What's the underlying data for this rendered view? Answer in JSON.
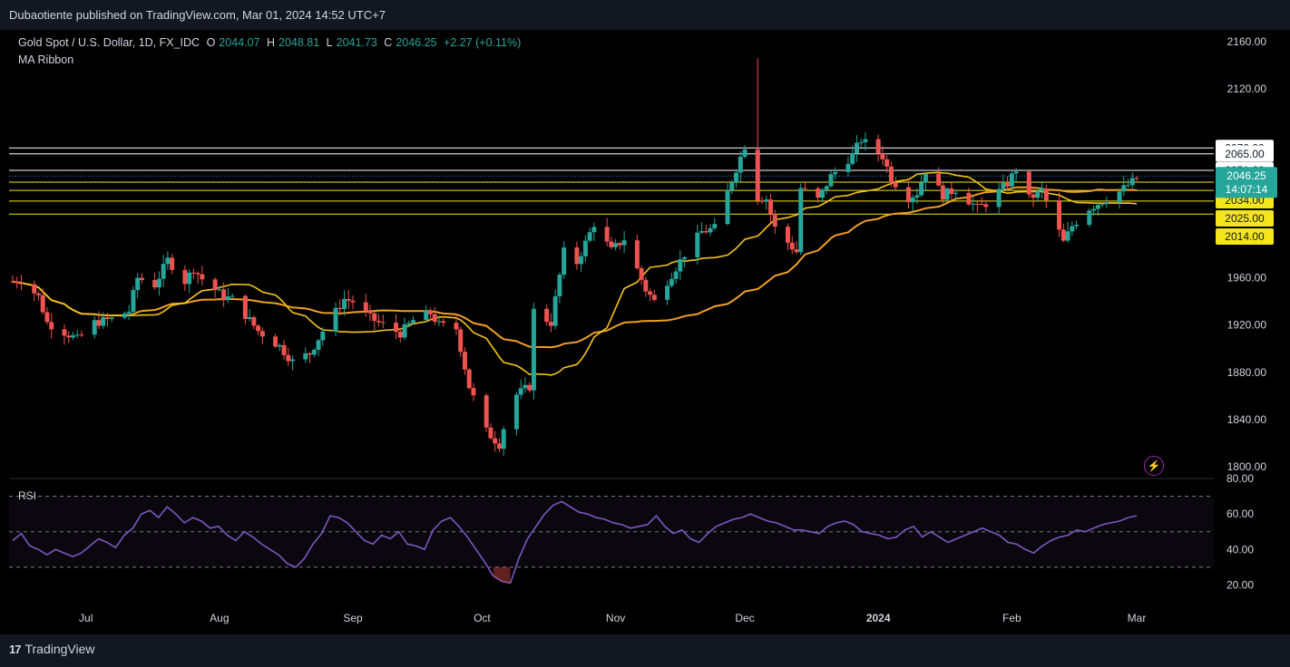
{
  "header": {
    "publisher": "Dubaotiente published on TradingView.com, Mar 01, 2024 14:52 UTC+7"
  },
  "legend": {
    "symbol": "Gold Spot / U.S. Dollar, 1D, FX_IDC",
    "open_key": "O",
    "open": "2044.07",
    "high_key": "H",
    "high": "2048.81",
    "low_key": "L",
    "low": "2041.73",
    "close_key": "C",
    "close": "2046.25",
    "change": "+2.27 (+0.11%)",
    "indicator": "MA Ribbon"
  },
  "rsi_label": "RSI",
  "footer": {
    "brand": "TradingView"
  },
  "colors": {
    "up": "#26a69a",
    "down": "#ef5350",
    "ma_fast": "#f5c518",
    "ma_slow": "#f0a020",
    "rsi": "#7e57c2",
    "level_white": "#ffffff",
    "level_yellow": "#f5e61c"
  },
  "chart_data": [
    {
      "type": "candlestick",
      "title": "Gold Spot / U.S. Dollar, 1D, FX_IDC",
      "ylim": [
        1790,
        2170
      ],
      "y_ticks": [
        1800,
        1840,
        1880,
        1920,
        1960,
        2120,
        2160
      ],
      "x_ticks": [
        "Jul",
        "Aug",
        "Sep",
        "Oct",
        "Nov",
        "Dec",
        "2024",
        "Feb",
        "Mar"
      ],
      "current_price": "2046.25",
      "countdown": "14:07:14",
      "levels_white": [
        "2070.00",
        "2065.00",
        "2051.00"
      ],
      "levels_yellow": [
        "2041.00",
        "2034.00",
        "2025.00",
        "2014.00"
      ],
      "close_path": [
        [
          "Jun 14",
          1957
        ],
        [
          "Jun 16",
          1958
        ],
        [
          "Jun 20",
          1944
        ],
        [
          "Jun 22",
          1922
        ],
        [
          "Jun 27",
          1912
        ],
        [
          "Jun 29",
          1908
        ],
        [
          "Jul 3",
          1922
        ],
        [
          "Jul 7",
          1925
        ],
        [
          "Jul 11",
          1932
        ],
        [
          "Jul 13",
          1960
        ],
        [
          "Jul 17",
          1954
        ],
        [
          "Jul 20",
          1975
        ],
        [
          "Jul 24",
          1957
        ],
        [
          "Jul 26",
          1968
        ],
        [
          "Jul 28",
          1959
        ],
        [
          "Aug 2",
          1944
        ],
        [
          "Aug 4",
          1942
        ],
        [
          "Aug 10",
          1915
        ],
        [
          "Aug 15",
          1902
        ],
        [
          "Aug 18",
          1889
        ],
        [
          "Aug 22",
          1896
        ],
        [
          "Aug 25",
          1915
        ],
        [
          "Aug 30",
          1942
        ],
        [
          "Sep 1",
          1940
        ],
        [
          "Sep 5",
          1926
        ],
        [
          "Sep 8",
          1920
        ],
        [
          "Sep 12",
          1913
        ],
        [
          "Sep 15",
          1924
        ],
        [
          "Sep 19",
          1930
        ],
        [
          "Sep 21",
          1920
        ],
        [
          "Sep 25",
          1917
        ],
        [
          "Sep 28",
          1868
        ],
        [
          "Oct 2",
          1830
        ],
        [
          "Oct 5",
          1819
        ],
        [
          "Oct 6",
          1833
        ],
        [
          "Oct 9",
          1861
        ],
        [
          "Oct 12",
          1868
        ],
        [
          "Oct 13",
          1932
        ],
        [
          "Oct 17",
          1922
        ],
        [
          "Oct 20",
          1982
        ],
        [
          "Oct 23",
          1973
        ],
        [
          "Oct 27",
          2006
        ],
        [
          "Oct 31",
          1983
        ],
        [
          "Nov 3",
          1993
        ],
        [
          "Nov 8",
          1950
        ],
        [
          "Nov 10",
          1940
        ],
        [
          "Nov 14",
          1963
        ],
        [
          "Nov 17",
          1980
        ],
        [
          "Nov 21",
          1999
        ],
        [
          "Nov 24",
          2002
        ],
        [
          "Nov 28",
          2043
        ],
        [
          "Dec 1",
          2072
        ],
        [
          "Dec 4",
          2028
        ],
        [
          "Dec 6",
          2027
        ],
        [
          "Dec 8",
          2002
        ],
        [
          "Dec 13",
          1982
        ],
        [
          "Dec 14",
          2036
        ],
        [
          "Dec 18",
          2026
        ],
        [
          "Dec 21",
          2046
        ],
        [
          "Dec 26",
          2064
        ],
        [
          "Dec 28",
          2077
        ],
        [
          "Jan 2",
          2063
        ],
        [
          "Jan 4",
          2044
        ],
        [
          "Jan 8",
          2028
        ],
        [
          "Jan 10",
          2032
        ],
        [
          "Jan 12",
          2051
        ],
        [
          "Jan 16",
          2030
        ],
        [
          "Jan 19",
          2035
        ],
        [
          "Jan 24",
          2019
        ],
        [
          "Jan 26",
          2023
        ],
        [
          "Jan 31",
          2040
        ],
        [
          "Feb 2",
          2052
        ],
        [
          "Feb 5",
          2027
        ],
        [
          "Feb 8",
          2034
        ],
        [
          "Feb 13",
          1990
        ],
        [
          "Feb 15",
          2004
        ],
        [
          "Feb 19",
          2019
        ],
        [
          "Feb 22",
          2025
        ],
        [
          "Feb 26",
          2033
        ],
        [
          "Feb 29",
          2044
        ],
        [
          "Mar 1",
          2046
        ]
      ]
    },
    {
      "type": "line",
      "title": "RSI",
      "ylim": [
        10,
        80
      ],
      "y_ticks": [
        20,
        40,
        60,
        80
      ],
      "reference_lines": [
        70,
        50,
        30
      ],
      "values": [
        45,
        49,
        42,
        40,
        37,
        40,
        38,
        36,
        38,
        42,
        46,
        44,
        41,
        48,
        52,
        60,
        62,
        58,
        64,
        60,
        55,
        58,
        56,
        52,
        53,
        48,
        45,
        50,
        47,
        43,
        40,
        37,
        32,
        30,
        35,
        43,
        49,
        59,
        58,
        55,
        50,
        45,
        43,
        48,
        46,
        50,
        43,
        42,
        40,
        51,
        56,
        58,
        53,
        47,
        40,
        33,
        25,
        22,
        21,
        35,
        46,
        53,
        60,
        65,
        67,
        64,
        61,
        60,
        58,
        57,
        55,
        54,
        52,
        53,
        54,
        59,
        53,
        49,
        51,
        46,
        44,
        49,
        53,
        55,
        57,
        58,
        60,
        58,
        56,
        55,
        53,
        51,
        51,
        50,
        49,
        53,
        55,
        56,
        54,
        50,
        49,
        48,
        46,
        47,
        51,
        53,
        47,
        50,
        47,
        44,
        46,
        48,
        50,
        52,
        50,
        48,
        44,
        43,
        40,
        38,
        42,
        45,
        47,
        48,
        51,
        50,
        52,
        54,
        55,
        56,
        58,
        59
      ]
    }
  ]
}
